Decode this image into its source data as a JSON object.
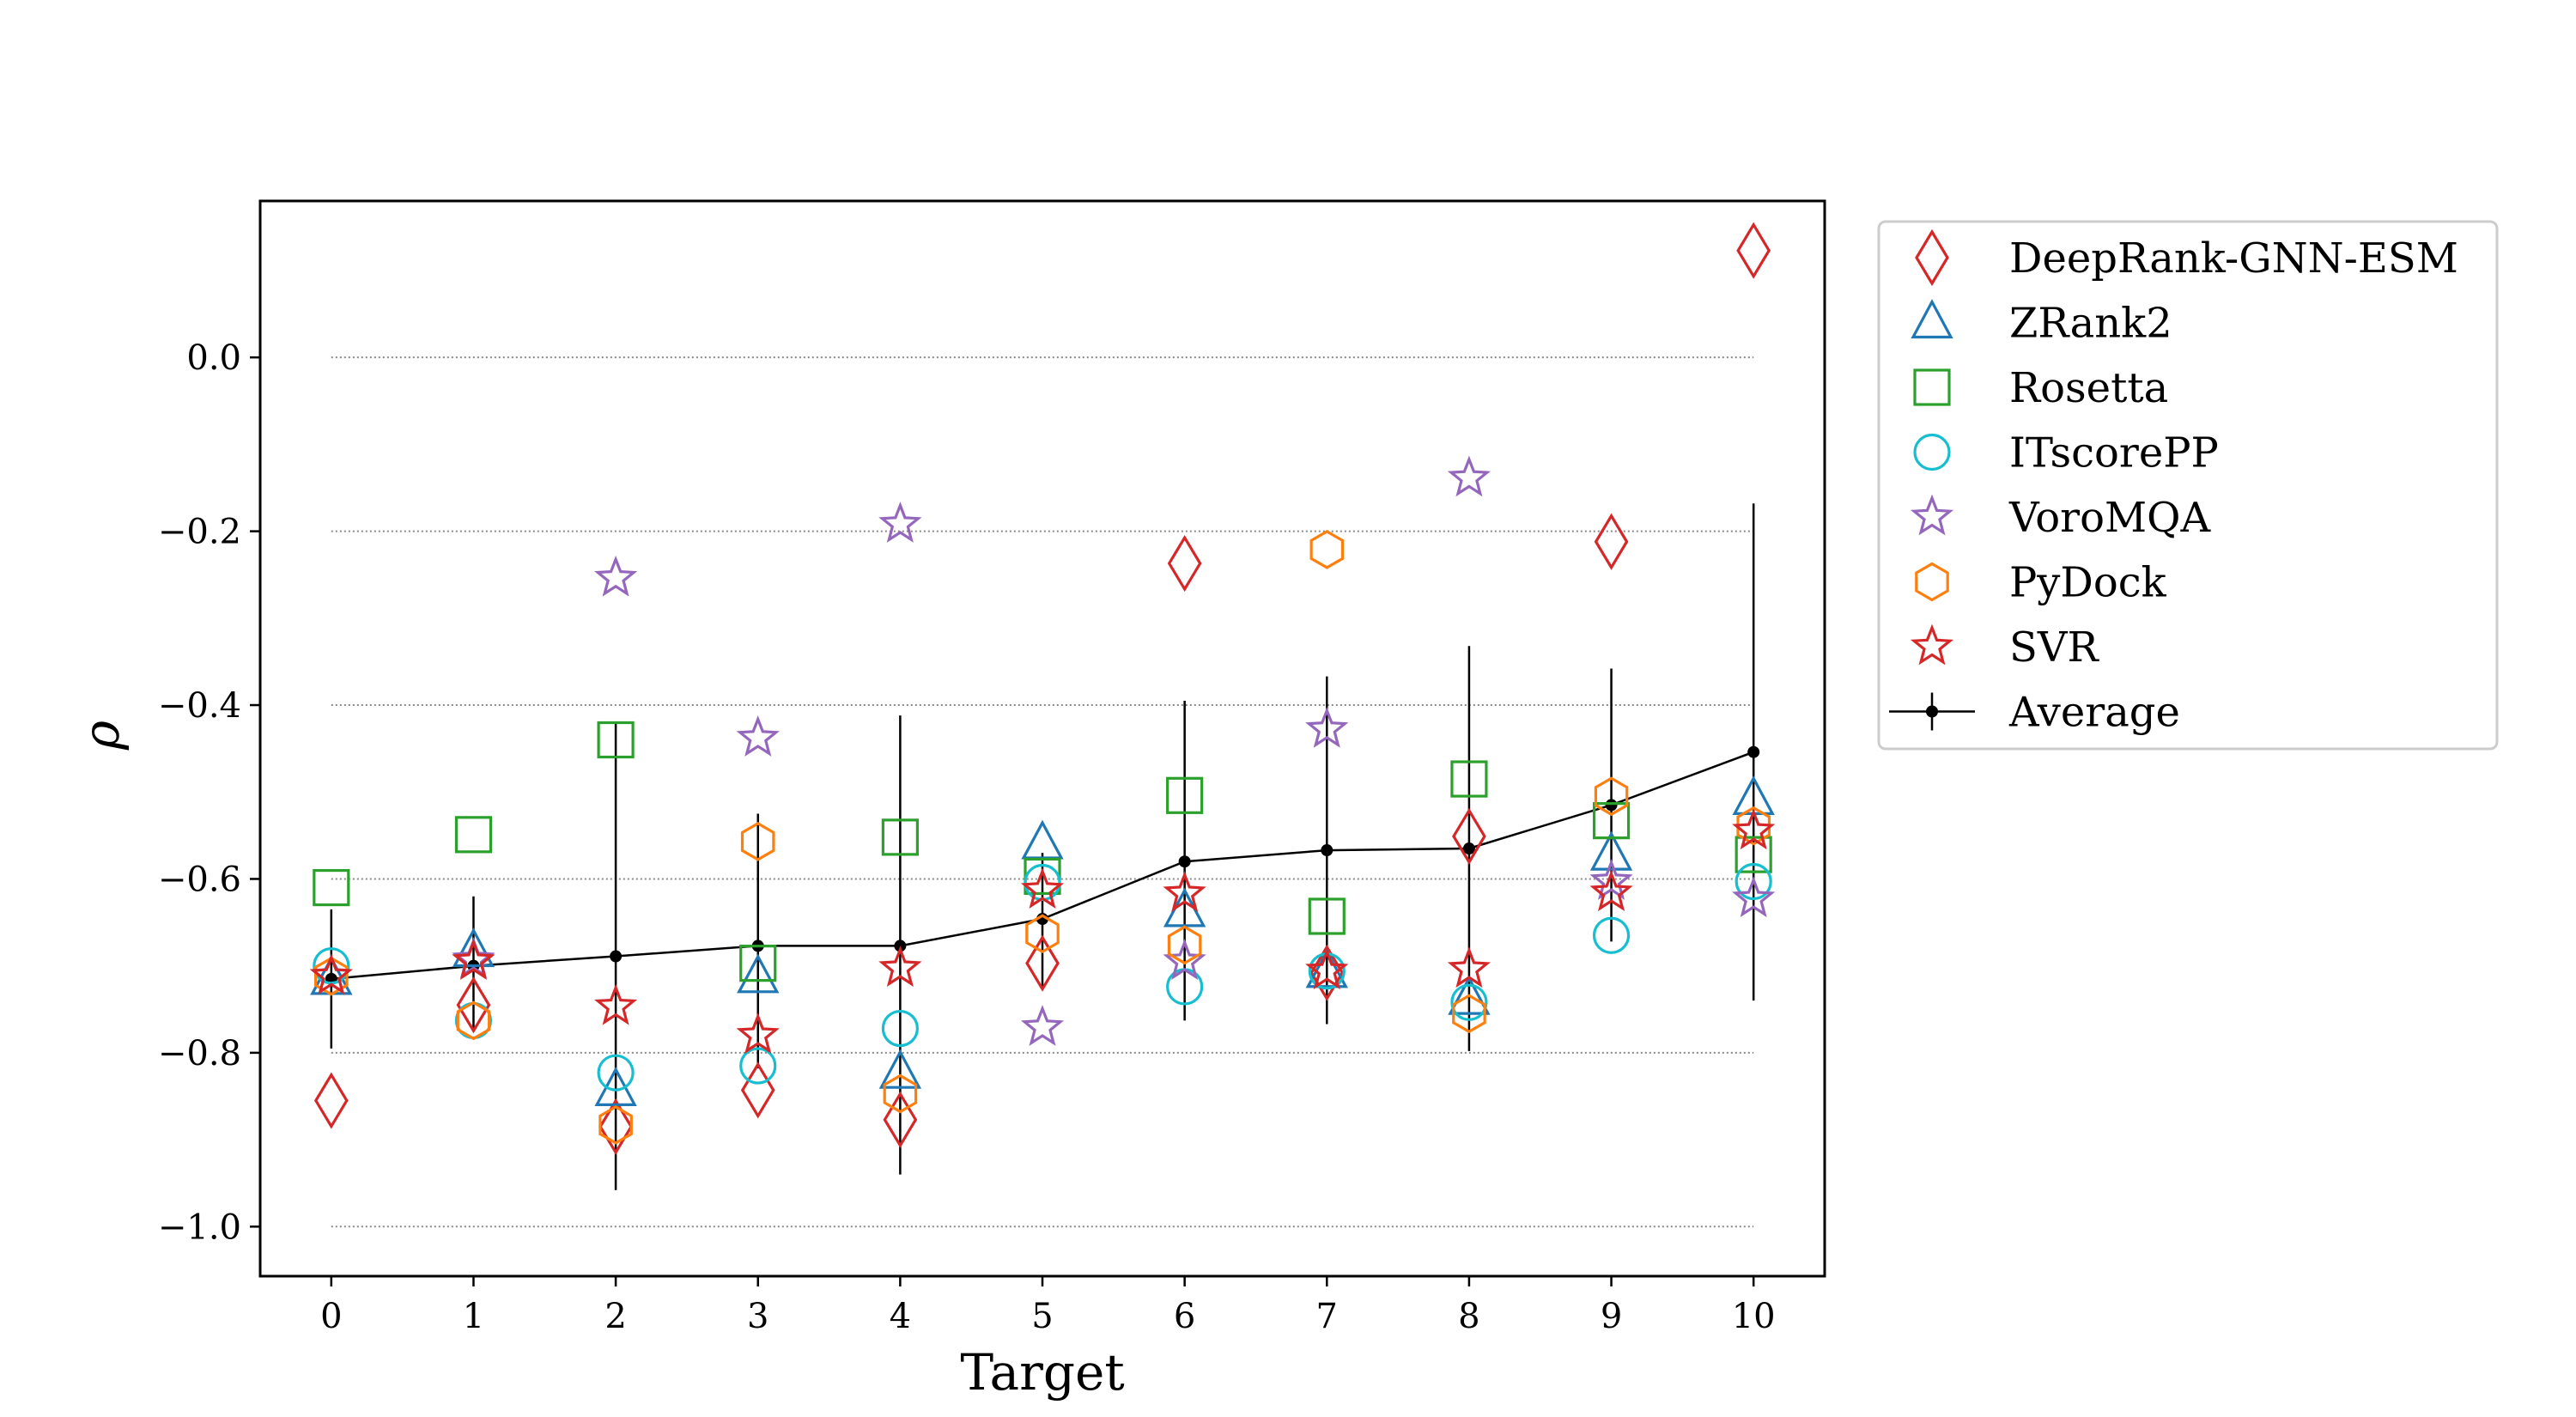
{
  "chart_data": {
    "type": "scatter",
    "xlabel": "Target",
    "ylabel": "ρ",
    "xlim": [
      -0.5,
      10.5
    ],
    "ylim": [
      -1.057,
      0.18
    ],
    "x_ticks": [
      0,
      1,
      2,
      3,
      4,
      5,
      6,
      7,
      8,
      9,
      10
    ],
    "y_ticks": [
      {
        "value": 0.0,
        "label": "0.0"
      },
      {
        "value": -0.2,
        "label": "−0.2"
      },
      {
        "value": -0.4,
        "label": "−0.4"
      },
      {
        "value": -0.6,
        "label": "−0.6"
      },
      {
        "value": -0.8,
        "label": "−0.8"
      },
      {
        "value": -1.0,
        "label": "−1.0"
      }
    ],
    "grid": "horizontal-dotted",
    "legend_position": "outside-right-top",
    "x": [
      0,
      1,
      2,
      3,
      4,
      5,
      6,
      7,
      8,
      9,
      10
    ],
    "series": [
      {
        "name": "DeepRank-GNN-ESM",
        "marker": "diamond",
        "color": "#d62728",
        "values": [
          -0.855,
          -0.745,
          -0.885,
          -0.843,
          -0.877,
          -0.697,
          -0.237,
          -0.708,
          -0.551,
          -0.212,
          0.123
        ]
      },
      {
        "name": "ZRank2",
        "marker": "triangle",
        "color": "#1f77b4",
        "values": [
          -0.715,
          -0.683,
          -0.843,
          -0.713,
          -0.823,
          -0.559,
          -0.637,
          -0.707,
          -0.738,
          -0.572,
          -0.508
        ]
      },
      {
        "name": "Rosetta",
        "marker": "square",
        "color": "#2ca02c",
        "values": [
          -0.61,
          -0.549,
          -0.44,
          -0.697,
          -0.552,
          -0.597,
          -0.504,
          -0.643,
          -0.485,
          -0.533,
          -0.572
        ]
      },
      {
        "name": "ITscorePP",
        "marker": "circle",
        "color": "#17becf",
        "values": [
          -0.7,
          -0.763,
          -0.823,
          -0.815,
          -0.772,
          -0.604,
          -0.724,
          -0.706,
          -0.742,
          -0.665,
          -0.603
        ]
      },
      {
        "name": "VoroMQA",
        "marker": "star",
        "color": "#9467bd",
        "values": [
          -0.712,
          -0.693,
          -0.254,
          -0.438,
          -0.192,
          -0.771,
          -0.695,
          -0.428,
          -0.139,
          -0.603,
          -0.623
        ]
      },
      {
        "name": "PyDock",
        "marker": "hexagon",
        "color": "#ff7f0e",
        "values": [
          -0.712,
          -0.763,
          -0.883,
          -0.557,
          -0.847,
          -0.663,
          -0.676,
          -0.221,
          -0.755,
          -0.505,
          -0.539
        ]
      },
      {
        "name": "SVR",
        "marker": "star",
        "color": "#d62728",
        "values": [
          -0.712,
          -0.695,
          -0.747,
          -0.78,
          -0.703,
          -0.613,
          -0.617,
          -0.706,
          -0.704,
          -0.616,
          -0.545
        ]
      }
    ],
    "average": {
      "name": "Average",
      "color": "#000000",
      "values": [
        -0.715,
        -0.7,
        -0.689,
        -0.677,
        -0.677,
        -0.646,
        -0.58,
        -0.567,
        -0.565,
        -0.515,
        -0.454
      ],
      "err_low": [
        -0.795,
        -0.775,
        -0.958,
        -0.818,
        -0.94,
        -0.725,
        -0.763,
        -0.767,
        -0.798,
        -0.672,
        -0.74
      ],
      "err_high": [
        -0.635,
        -0.62,
        -0.42,
        -0.525,
        -0.412,
        -0.57,
        -0.395,
        -0.367,
        -0.332,
        -0.358,
        -0.168
      ]
    }
  }
}
